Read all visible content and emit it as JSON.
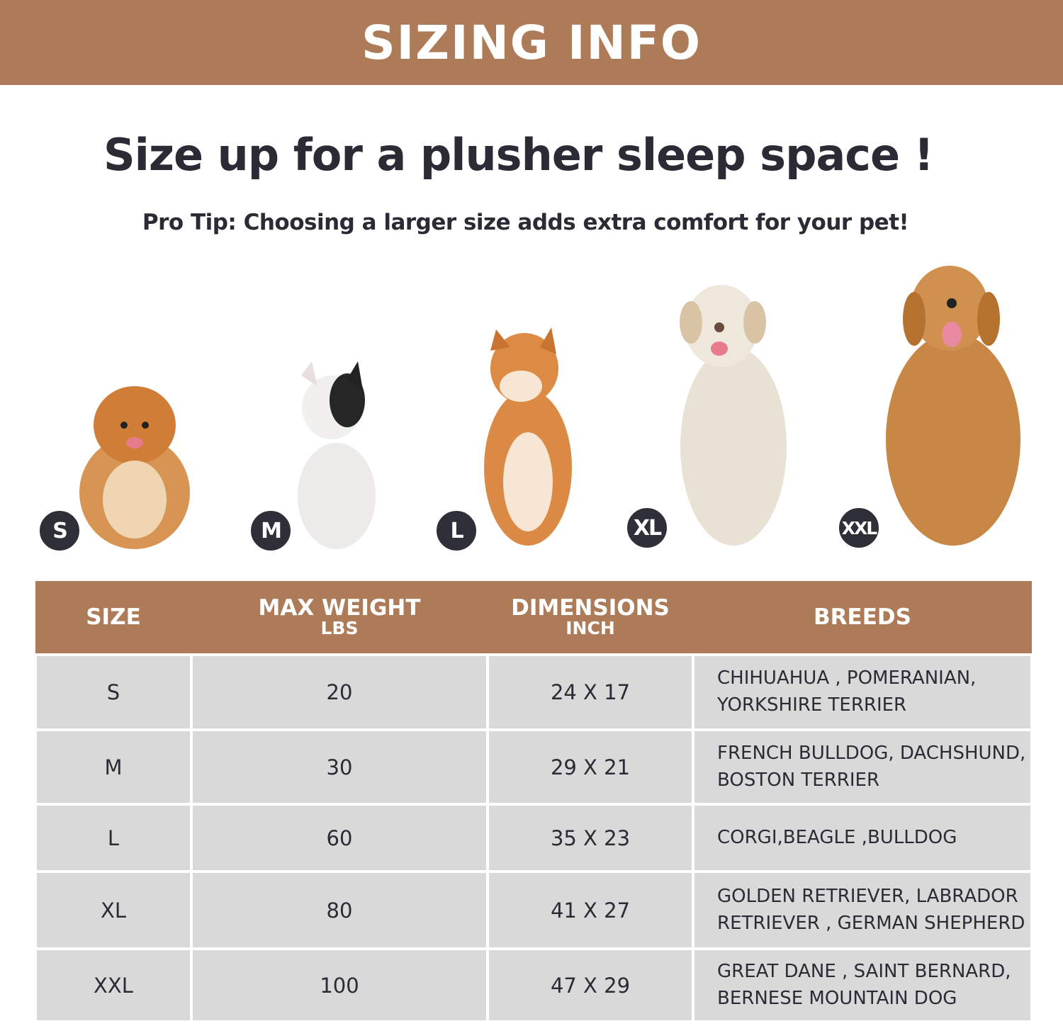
{
  "banner": {
    "title": "SIZING  INFO"
  },
  "headline": "Size up for a plusher sleep space !",
  "tip": "Pro Tip: Choosing a larger size adds extra comfort for your pet!",
  "colors": {
    "brand": "#ad7b58",
    "cell": "#d9d9d9",
    "text": "#2b2b35",
    "badge": "#2f2f3a"
  },
  "dogs": [
    {
      "badge": "S",
      "image": "pomeranian-photo"
    },
    {
      "badge": "M",
      "image": "french-bulldog-photo"
    },
    {
      "badge": "L",
      "image": "shiba-inu-photo"
    },
    {
      "badge": "XL",
      "image": "labrador-photo"
    },
    {
      "badge": "XXL",
      "image": "golden-retriever-photo"
    }
  ],
  "table": {
    "headers": [
      {
        "label": "SIZE",
        "unit": ""
      },
      {
        "label": "MAX WEIGHT",
        "unit": "LBS"
      },
      {
        "label": "DIMENSIONS",
        "unit": "INCH"
      },
      {
        "label": "BREEDS",
        "unit": ""
      }
    ],
    "rows": [
      {
        "size": "S",
        "weight": "20",
        "dims": "24 X 17",
        "breeds": "CHIHUAHUA , POMERANIAN, YORKSHIRE TERRIER"
      },
      {
        "size": "M",
        "weight": "30",
        "dims": "29 X 21",
        "breeds": "FRENCH BULLDOG, DACHSHUND, BOSTON TERRIER"
      },
      {
        "size": "L",
        "weight": "60",
        "dims": "35 X 23",
        "breeds": "CORGI,BEAGLE ,BULLDOG"
      },
      {
        "size": "XL",
        "weight": "80",
        "dims": "41 X 27",
        "breeds": "GOLDEN RETRIEVER, LABRADOR RETRIEVER , GERMAN SHEPHERD"
      },
      {
        "size": "XXL",
        "weight": "100",
        "dims": "47 X 29",
        "breeds": "GREAT DANE , SAINT BERNARD, BERNESE MOUNTAIN DOG"
      }
    ]
  }
}
